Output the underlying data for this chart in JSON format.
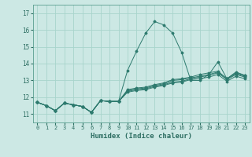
{
  "xlabel": "Humidex (Indice chaleur)",
  "bg_color": "#cce8e4",
  "grid_color": "#a8d4cc",
  "line_color": "#2d7a6e",
  "xlim": [
    -0.5,
    23.5
  ],
  "ylim": [
    10.5,
    17.5
  ],
  "xticks": [
    0,
    1,
    2,
    3,
    4,
    5,
    6,
    7,
    8,
    9,
    10,
    11,
    12,
    13,
    14,
    15,
    16,
    17,
    18,
    19,
    20,
    21,
    22,
    23
  ],
  "yticks": [
    11,
    12,
    13,
    14,
    15,
    16,
    17
  ],
  "series": [
    [
      11.7,
      11.5,
      11.2,
      11.65,
      11.55,
      11.45,
      11.1,
      11.8,
      11.75,
      11.75,
      13.6,
      14.75,
      15.8,
      16.5,
      16.3,
      15.8,
      14.65,
      13.0,
      13.0,
      13.35,
      14.1,
      13.1,
      13.5,
      13.3
    ],
    [
      11.7,
      11.5,
      11.2,
      11.65,
      11.55,
      11.45,
      11.1,
      11.8,
      11.75,
      11.75,
      12.45,
      12.55,
      12.6,
      12.75,
      12.85,
      13.05,
      13.1,
      13.2,
      13.35,
      13.45,
      13.55,
      13.1,
      13.45,
      13.3
    ],
    [
      11.7,
      11.5,
      11.2,
      11.65,
      11.55,
      11.45,
      11.1,
      11.8,
      11.75,
      11.75,
      12.4,
      12.5,
      12.55,
      12.7,
      12.8,
      13.0,
      13.05,
      13.15,
      13.25,
      13.35,
      13.5,
      13.1,
      13.4,
      13.25
    ],
    [
      11.7,
      11.5,
      11.2,
      11.65,
      11.55,
      11.45,
      11.1,
      11.8,
      11.75,
      11.75,
      12.35,
      12.45,
      12.5,
      12.65,
      12.75,
      12.9,
      12.95,
      13.1,
      13.2,
      13.3,
      13.45,
      13.05,
      13.35,
      13.2
    ],
    [
      11.7,
      11.5,
      11.2,
      11.65,
      11.55,
      11.45,
      11.1,
      11.8,
      11.75,
      11.75,
      12.3,
      12.4,
      12.45,
      12.6,
      12.7,
      12.85,
      12.9,
      13.05,
      13.1,
      13.2,
      13.35,
      12.95,
      13.25,
      13.1
    ]
  ]
}
